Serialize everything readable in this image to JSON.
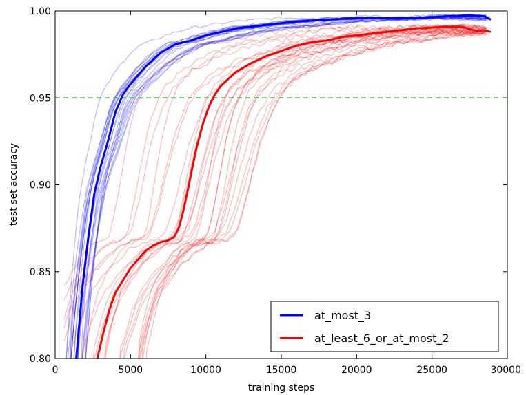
{
  "chart_data": {
    "type": "line",
    "title": "",
    "xlabel": "training steps",
    "ylabel": "test set accuracy",
    "xlim": [
      0,
      30000
    ],
    "ylim": [
      0.8,
      1.0
    ],
    "xticks": [
      0,
      5000,
      10000,
      15000,
      20000,
      25000,
      30000
    ],
    "yticks": [
      0.8,
      0.85,
      0.9,
      0.95,
      1.0
    ],
    "xtick_labels": [
      "0",
      "5000",
      "10000",
      "15000",
      "20000",
      "25000",
      "30000"
    ],
    "ytick_labels": [
      "0.80",
      "0.85",
      "0.90",
      "0.95",
      "1.00"
    ],
    "grid": false,
    "legend_position": "bottom-right",
    "legend": [
      {
        "label": "at_most_3",
        "color": "#0000ff"
      },
      {
        "label": "at_least_6_or_at_most_2",
        "color": "#ff0000"
      }
    ],
    "reference_lines": [
      {
        "type": "horizontal",
        "y": 0.95,
        "color": "#2ca02c",
        "style": "dashed"
      }
    ],
    "series": [
      {
        "name": "at_most_3",
        "color": "#0000ff",
        "points": [
          [
            1400,
            0.8
          ],
          [
            1800,
            0.84
          ],
          [
            2200,
            0.87
          ],
          [
            2600,
            0.895
          ],
          [
            3000,
            0.91
          ],
          [
            3500,
            0.925
          ],
          [
            4000,
            0.942
          ],
          [
            4500,
            0.952
          ],
          [
            5000,
            0.958
          ],
          [
            6000,
            0.968
          ],
          [
            7000,
            0.976
          ],
          [
            8000,
            0.981
          ],
          [
            9000,
            0.983
          ],
          [
            10000,
            0.986
          ],
          [
            11000,
            0.988
          ],
          [
            12000,
            0.99
          ],
          [
            14000,
            0.992
          ],
          [
            16000,
            0.994
          ],
          [
            18000,
            0.995
          ],
          [
            20000,
            0.996
          ],
          [
            22000,
            0.996
          ],
          [
            24000,
            0.996
          ],
          [
            26000,
            0.997
          ],
          [
            27500,
            0.9975
          ],
          [
            28500,
            0.997
          ],
          [
            28900,
            0.995
          ]
        ]
      },
      {
        "name": "at_least_6_or_at_most_2",
        "color": "#ff0000",
        "points": [
          [
            2800,
            0.8
          ],
          [
            3200,
            0.815
          ],
          [
            3600,
            0.828
          ],
          [
            4000,
            0.838
          ],
          [
            4500,
            0.845
          ],
          [
            5000,
            0.852
          ],
          [
            5500,
            0.857
          ],
          [
            6000,
            0.862
          ],
          [
            6500,
            0.865
          ],
          [
            7000,
            0.867
          ],
          [
            7500,
            0.868
          ],
          [
            7900,
            0.87
          ],
          [
            8200,
            0.875
          ],
          [
            8500,
            0.885
          ],
          [
            8800,
            0.897
          ],
          [
            9100,
            0.91
          ],
          [
            9400,
            0.922
          ],
          [
            9800,
            0.935
          ],
          [
            10200,
            0.945
          ],
          [
            10600,
            0.952
          ],
          [
            11000,
            0.957
          ],
          [
            12000,
            0.965
          ],
          [
            13000,
            0.97
          ],
          [
            14000,
            0.974
          ],
          [
            15000,
            0.977
          ],
          [
            16000,
            0.98
          ],
          [
            17000,
            0.982
          ],
          [
            18000,
            0.983
          ],
          [
            19000,
            0.985
          ],
          [
            20000,
            0.986
          ],
          [
            21000,
            0.987
          ],
          [
            22000,
            0.988
          ],
          [
            23000,
            0.989
          ],
          [
            24000,
            0.99
          ],
          [
            25000,
            0.9905
          ],
          [
            26000,
            0.991
          ],
          [
            27000,
            0.991
          ],
          [
            27500,
            0.9895
          ],
          [
            28000,
            0.9885
          ],
          [
            28400,
            0.989
          ],
          [
            28900,
            0.988
          ]
        ]
      }
    ]
  }
}
